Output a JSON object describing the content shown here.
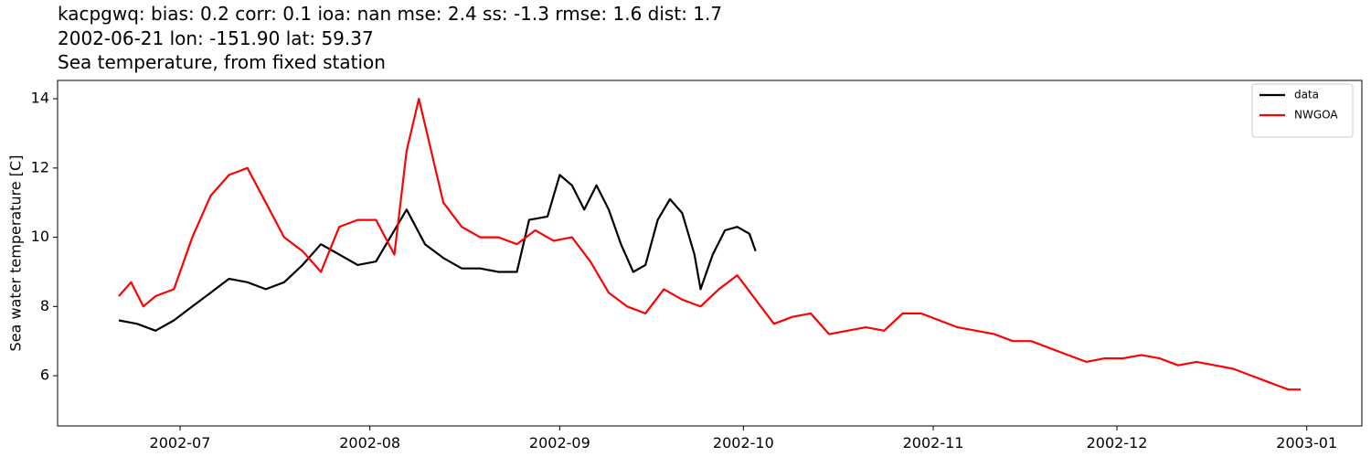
{
  "chart_data": {
    "type": "line",
    "title": [
      "kacpgwq: bias: 0.2  corr: 0.1  ioa: nan  mse: 2.4  ss: -1.3  rmse: 1.6  dist: 1.7",
      "2002-06-21 lon: -151.90 lat: 59.37",
      "Sea temperature, from fixed station"
    ],
    "ylabel": "Sea water temperature [C]",
    "xlim": [
      "2002-06-11",
      "2003-01-10"
    ],
    "xticks": [
      "2002-07",
      "2002-08",
      "2002-09",
      "2002-10",
      "2002-11",
      "2002-12",
      "2003-01"
    ],
    "ylim": [
      4.55,
      14.53
    ],
    "yticks": [
      6,
      8,
      10,
      12,
      14
    ],
    "grid": false,
    "legend": "upper right",
    "series": [
      {
        "name": "data",
        "color": "#000000",
        "x": [
          "2002-06-21",
          "2002-06-24",
          "2002-06-27",
          "2002-06-30",
          "2002-07-03",
          "2002-07-06",
          "2002-07-09",
          "2002-07-12",
          "2002-07-15",
          "2002-07-18",
          "2002-07-21",
          "2002-07-24",
          "2002-07-27",
          "2002-07-30",
          "2002-08-02",
          "2002-08-05",
          "2002-08-07",
          "2002-08-10",
          "2002-08-13",
          "2002-08-16",
          "2002-08-19",
          "2002-08-22",
          "2002-08-25",
          "2002-08-27",
          "2002-08-30",
          "2002-09-01",
          "2002-09-03",
          "2002-09-05",
          "2002-09-07",
          "2002-09-09",
          "2002-09-11",
          "2002-09-13",
          "2002-09-15",
          "2002-09-17",
          "2002-09-19",
          "2002-09-21",
          "2002-09-23",
          "2002-09-24",
          "2002-09-26",
          "2002-09-28",
          "2002-09-30",
          "2002-10-02",
          "2002-10-03"
        ],
        "values": [
          7.6,
          7.5,
          7.3,
          7.6,
          8.0,
          8.4,
          8.8,
          8.7,
          8.5,
          8.7,
          9.2,
          9.8,
          9.5,
          9.2,
          9.3,
          10.2,
          10.8,
          9.8,
          9.4,
          9.1,
          9.1,
          9.0,
          9.0,
          10.5,
          10.6,
          11.8,
          11.5,
          10.8,
          11.5,
          10.8,
          9.8,
          9.0,
          9.2,
          10.5,
          11.1,
          10.7,
          9.5,
          8.5,
          9.5,
          10.2,
          10.3,
          10.1,
          9.6
        ]
      },
      {
        "name": "NWGOA",
        "color": "#ff0000",
        "x": [
          "2002-06-21",
          "2002-06-23",
          "2002-06-25",
          "2002-06-27",
          "2002-06-30",
          "2002-07-03",
          "2002-07-06",
          "2002-07-09",
          "2002-07-12",
          "2002-07-15",
          "2002-07-18",
          "2002-07-21",
          "2002-07-24",
          "2002-07-27",
          "2002-07-30",
          "2002-08-02",
          "2002-08-05",
          "2002-08-07",
          "2002-08-09",
          "2002-08-11",
          "2002-08-13",
          "2002-08-16",
          "2002-08-19",
          "2002-08-22",
          "2002-08-25",
          "2002-08-28",
          "2002-08-31",
          "2002-09-03",
          "2002-09-06",
          "2002-09-09",
          "2002-09-12",
          "2002-09-15",
          "2002-09-18",
          "2002-09-21",
          "2002-09-24",
          "2002-09-27",
          "2002-09-30",
          "2002-10-03",
          "2002-10-06",
          "2002-10-09",
          "2002-10-12",
          "2002-10-15",
          "2002-10-18",
          "2002-10-21",
          "2002-10-24",
          "2002-10-27",
          "2002-10-30",
          "2002-11-02",
          "2002-11-05",
          "2002-11-08",
          "2002-11-11",
          "2002-11-14",
          "2002-11-17",
          "2002-11-20",
          "2002-11-23",
          "2002-11-26",
          "2002-11-29",
          "2002-12-02",
          "2002-12-05",
          "2002-12-08",
          "2002-12-11",
          "2002-12-14",
          "2002-12-17",
          "2002-12-20",
          "2002-12-23",
          "2002-12-26",
          "2002-12-29",
          "2002-12-31"
        ],
        "values": [
          8.3,
          8.7,
          8.0,
          8.3,
          8.5,
          10.0,
          11.2,
          11.8,
          12.0,
          11.0,
          10.0,
          9.6,
          9.0,
          10.3,
          10.5,
          10.5,
          9.5,
          12.5,
          14.0,
          12.5,
          11.0,
          10.3,
          10.0,
          10.0,
          9.8,
          10.2,
          9.9,
          10.0,
          9.3,
          8.4,
          8.0,
          7.8,
          8.5,
          8.2,
          8.0,
          8.5,
          8.9,
          8.2,
          7.5,
          7.7,
          7.8,
          7.2,
          7.3,
          7.4,
          7.3,
          7.8,
          7.8,
          7.6,
          7.4,
          7.3,
          7.2,
          7.0,
          7.0,
          6.8,
          6.6,
          6.4,
          6.5,
          6.5,
          6.6,
          6.5,
          6.3,
          6.4,
          6.3,
          6.2,
          6.0,
          5.8,
          5.6,
          5.6
        ]
      }
    ]
  }
}
